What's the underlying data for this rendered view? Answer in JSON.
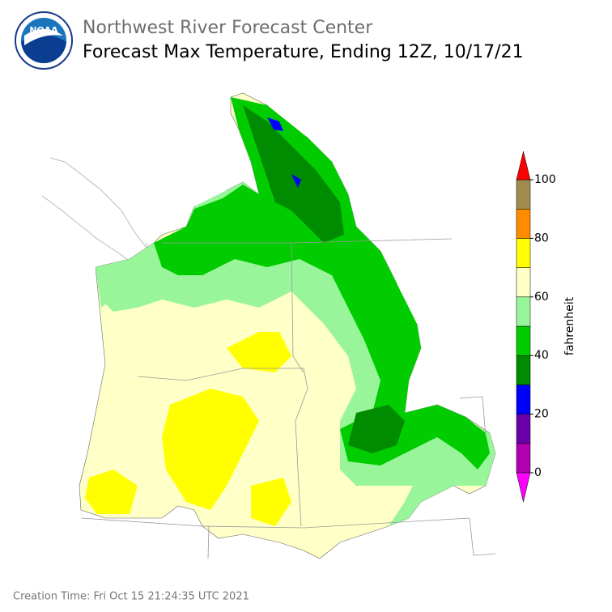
{
  "header": {
    "logo_text": "NOAA",
    "title": "Northwest River Forecast Center",
    "subtitle": "Forecast Max Temperature, Ending 12Z, 10/17/21"
  },
  "legend": {
    "bounds": [
      0,
      10,
      20,
      30,
      40,
      50,
      60,
      70,
      80,
      90,
      100
    ],
    "colors": [
      "#b000b0",
      "#6a00aa",
      "#0000ff",
      "#008c00",
      "#00cc00",
      "#99f599",
      "#ffffc8",
      "#ffff00",
      "#ff8c00",
      "#a08c50"
    ],
    "under_color": "#ff00ff",
    "over_color": "#ff0000",
    "ticks": [
      0,
      20,
      40,
      60,
      80,
      100
    ],
    "label": "fahrenheit"
  },
  "footer": {
    "creation_time": "Creation Time: Fri Oct 15 21:24:35 UTC 2021"
  }
}
